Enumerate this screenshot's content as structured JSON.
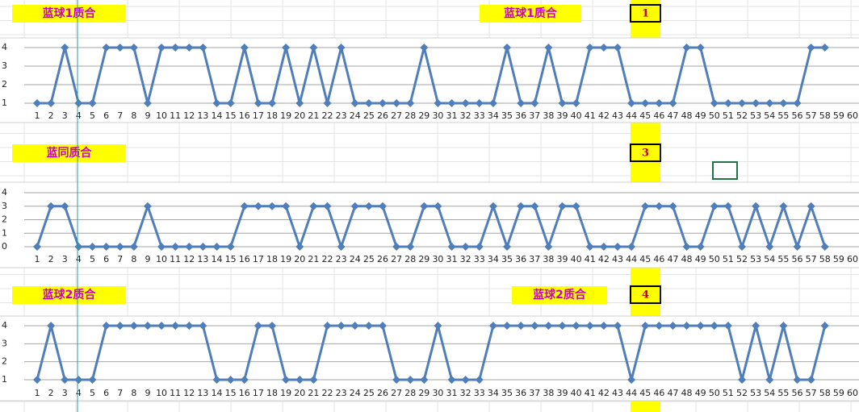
{
  "chart_data": [
    {
      "type": "line",
      "annotations": [
        "蓝球1质合",
        "蓝球1质合"
      ],
      "marker": "1",
      "categories": [
        1,
        2,
        3,
        4,
        5,
        6,
        7,
        8,
        9,
        10,
        11,
        12,
        13,
        14,
        15,
        16,
        17,
        18,
        19,
        20,
        21,
        22,
        23,
        24,
        25,
        26,
        27,
        28,
        29,
        30,
        31,
        32,
        33,
        34,
        35,
        36,
        37,
        38,
        39,
        40,
        41,
        42,
        43,
        44,
        45,
        46,
        47,
        48,
        49,
        50,
        51,
        52,
        53,
        54,
        55,
        56,
        57,
        58,
        59,
        60
      ],
      "series": [
        {
          "name": "蓝球1质合",
          "color": "#4f7ebb",
          "values": [
            1,
            1,
            4,
            1,
            1,
            4,
            4,
            4,
            1,
            4,
            4,
            4,
            4,
            1,
            1,
            4,
            1,
            1,
            4,
            1,
            4,
            1,
            4,
            1,
            1,
            1,
            1,
            1,
            4,
            1,
            1,
            1,
            1,
            1,
            4,
            1,
            1,
            4,
            1,
            1,
            4,
            4,
            4,
            1,
            1,
            1,
            1,
            4,
            4,
            1,
            1,
            1,
            1,
            1,
            1,
            1,
            4,
            4,
            null,
            null
          ]
        }
      ],
      "ylim": [
        1,
        4
      ],
      "yticks": [
        1,
        2,
        3,
        4
      ],
      "grid": true
    },
    {
      "type": "line",
      "annotations": [
        "蓝同质合"
      ],
      "marker": "3",
      "categories": [
        1,
        2,
        3,
        4,
        5,
        6,
        7,
        8,
        9,
        10,
        11,
        12,
        13,
        14,
        15,
        16,
        17,
        18,
        19,
        20,
        21,
        22,
        23,
        24,
        25,
        26,
        27,
        28,
        29,
        30,
        31,
        32,
        33,
        34,
        35,
        36,
        37,
        38,
        39,
        40,
        41,
        42,
        43,
        44,
        45,
        46,
        47,
        48,
        49,
        50,
        51,
        52,
        53,
        54,
        55,
        56,
        57,
        58,
        59,
        60
      ],
      "series": [
        {
          "name": "蓝同质合",
          "color": "#4f7ebb",
          "values": [
            0,
            3,
            3,
            0,
            0,
            0,
            0,
            0,
            3,
            0,
            0,
            0,
            0,
            0,
            0,
            3,
            3,
            3,
            3,
            0,
            3,
            3,
            0,
            3,
            3,
            3,
            0,
            0,
            3,
            3,
            0,
            0,
            0,
            3,
            0,
            3,
            3,
            0,
            3,
            3,
            0,
            0,
            0,
            0,
            3,
            3,
            3,
            0,
            0,
            3,
            3,
            0,
            3,
            0,
            3,
            0,
            3,
            0,
            null,
            null
          ]
        }
      ],
      "ylim": [
        0,
        4
      ],
      "yticks": [
        0,
        1,
        2,
        3,
        4
      ],
      "grid": true
    },
    {
      "type": "line",
      "annotations": [
        "蓝球2质合",
        "蓝球2质合"
      ],
      "marker": "4",
      "categories": [
        1,
        2,
        3,
        4,
        5,
        6,
        7,
        8,
        9,
        10,
        11,
        12,
        13,
        14,
        15,
        16,
        17,
        18,
        19,
        20,
        21,
        22,
        23,
        24,
        25,
        26,
        27,
        28,
        29,
        30,
        31,
        32,
        33,
        34,
        35,
        36,
        37,
        38,
        39,
        40,
        41,
        42,
        43,
        44,
        45,
        46,
        47,
        48,
        49,
        50,
        51,
        52,
        53,
        54,
        55,
        56,
        57,
        58,
        59,
        60
      ],
      "series": [
        {
          "name": "蓝球2质合",
          "color": "#4f7ebb",
          "values": [
            1,
            4,
            1,
            1,
            1,
            4,
            4,
            4,
            4,
            4,
            4,
            4,
            4,
            1,
            1,
            1,
            4,
            4,
            1,
            1,
            1,
            4,
            4,
            4,
            4,
            4,
            1,
            1,
            1,
            4,
            1,
            1,
            1,
            4,
            4,
            4,
            4,
            4,
            4,
            4,
            4,
            4,
            4,
            1,
            4,
            4,
            4,
            4,
            4,
            4,
            4,
            1,
            4,
            1,
            4,
            1,
            1,
            4,
            null,
            null
          ]
        }
      ],
      "ylim": [
        1,
        4
      ],
      "yticks": [
        1,
        2,
        3,
        4
      ],
      "grid": true
    }
  ]
}
